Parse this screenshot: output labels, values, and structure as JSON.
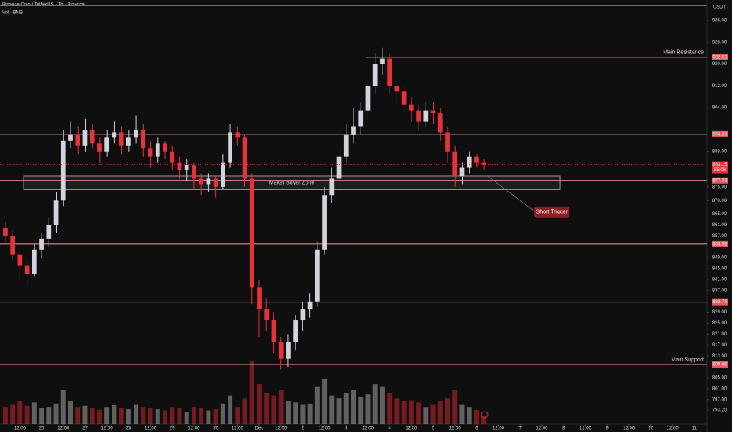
{
  "chart_data": {
    "type": "candlestick",
    "title": "Binance Coin / TetherUS · 1h · Binance",
    "subtitle": "Vol · BNB",
    "currency": "USDT",
    "colors": {
      "up": "#d1d4dc",
      "down": "#e5323b",
      "level": "#f19a9a",
      "level_label": "#e0575d"
    },
    "x": [
      -20,
      -16,
      -12,
      -8,
      -4,
      0,
      4,
      8,
      12,
      16,
      20,
      24,
      28,
      32,
      36,
      40,
      44,
      48,
      52,
      56,
      60,
      64,
      68,
      72,
      76,
      80,
      84,
      88,
      92,
      96,
      100,
      104,
      108,
      112,
      116,
      120,
      124,
      128,
      132,
      136,
      140,
      144,
      148,
      152,
      156,
      160,
      164,
      168,
      172,
      176,
      180,
      184,
      188,
      192,
      196,
      200,
      204,
      208,
      212,
      216,
      220,
      224,
      228,
      232,
      236,
      240,
      244
    ],
    "open": [
      860,
      857,
      850,
      846,
      843,
      852,
      856,
      861,
      870,
      892,
      894,
      890,
      896,
      891,
      888,
      893,
      895,
      890,
      893,
      896,
      889,
      886,
      891,
      888,
      884,
      881,
      883,
      878,
      876,
      878,
      875,
      884,
      895,
      893,
      878,
      838,
      830,
      826,
      818,
      812,
      818,
      826,
      830,
      833,
      852,
      872,
      878,
      886,
      894,
      897,
      903,
      912,
      920,
      922,
      912,
      910,
      905,
      903,
      899,
      903,
      902,
      895,
      888,
      879,
      882,
      886,
      884
    ],
    "high": [
      862,
      859,
      852,
      849,
      854,
      858,
      864,
      873,
      896,
      899,
      897,
      900,
      898,
      893,
      896,
      899,
      897,
      896,
      901,
      898,
      892,
      893,
      892,
      890,
      886,
      885,
      884,
      880,
      880,
      879,
      887,
      898,
      897,
      894,
      880,
      841,
      834,
      829,
      820,
      821,
      828,
      833,
      836,
      855,
      875,
      882,
      889,
      898,
      904,
      906,
      915,
      924,
      926,
      924,
      915,
      912,
      908,
      905,
      906,
      906,
      904,
      897,
      890,
      884,
      888,
      887,
      885
    ],
    "low": [
      855,
      848,
      841,
      839,
      842,
      849,
      853,
      858,
      868,
      889,
      887,
      888,
      889,
      884,
      886,
      891,
      887,
      888,
      891,
      886,
      882,
      884,
      885,
      881,
      878,
      877,
      874,
      872,
      873,
      871,
      874,
      882,
      890,
      875,
      832,
      820,
      822,
      814,
      808,
      809,
      815,
      822,
      827,
      831,
      850,
      869,
      875,
      884,
      891,
      894,
      900,
      909,
      916,
      909,
      906,
      902,
      899,
      896,
      897,
      898,
      892,
      884,
      875,
      876,
      880,
      882,
      881
    ],
    "close": [
      857,
      850,
      846,
      843,
      852,
      856,
      861,
      870,
      892,
      894,
      890,
      896,
      891,
      888,
      893,
      895,
      890,
      893,
      896,
      889,
      886,
      891,
      888,
      884,
      881,
      883,
      878,
      876,
      878,
      875,
      884,
      895,
      893,
      878,
      838,
      830,
      826,
      818,
      812,
      818,
      826,
      830,
      833,
      852,
      872,
      878,
      886,
      894,
      897,
      903,
      912,
      920,
      922,
      912,
      910,
      905,
      903,
      899,
      903,
      902,
      895,
      888,
      879,
      882,
      886,
      884,
      883.15
    ],
    "volume": [
      30,
      35,
      40,
      32,
      38,
      28,
      30,
      36,
      60,
      40,
      30,
      32,
      28,
      25,
      30,
      34,
      28,
      26,
      35,
      30,
      28,
      26,
      24,
      30,
      28,
      22,
      30,
      28,
      24,
      26,
      36,
      50,
      30,
      45,
      110,
      70,
      55,
      50,
      60,
      40,
      38,
      35,
      36,
      65,
      80,
      50,
      45,
      55,
      60,
      48,
      52,
      70,
      65,
      55,
      45,
      40,
      42,
      38,
      30,
      35,
      40,
      45,
      60,
      35,
      30,
      25,
      15
    ],
    "xlim": [
      -23,
      367
    ],
    "xticks": [
      {
        "value": -12,
        "label": "12:00"
      },
      {
        "value": 0,
        "label": "26"
      },
      {
        "value": 12,
        "label": "12:00"
      },
      {
        "value": 24,
        "label": "27"
      },
      {
        "value": 36,
        "label": "12:00"
      },
      {
        "value": 48,
        "label": "28"
      },
      {
        "value": 60,
        "label": "12:00"
      },
      {
        "value": 72,
        "label": "29"
      },
      {
        "value": 84,
        "label": "12:00"
      },
      {
        "value": 96,
        "label": "30"
      },
      {
        "value": 108,
        "label": "12:00"
      },
      {
        "value": 120,
        "label": "Dec"
      },
      {
        "value": 132,
        "label": "12:00"
      },
      {
        "value": 144,
        "label": "2"
      },
      {
        "value": 156,
        "label": "12:00"
      },
      {
        "value": 168,
        "label": "3"
      },
      {
        "value": 180,
        "label": "12:00"
      },
      {
        "value": 192,
        "label": "4"
      },
      {
        "value": 204,
        "label": "12:00"
      },
      {
        "value": 216,
        "label": "5"
      },
      {
        "value": 228,
        "label": "12:00"
      },
      {
        "value": 240,
        "label": "6"
      },
      {
        "value": 252,
        "label": "12:00"
      },
      {
        "value": 264,
        "label": "7"
      },
      {
        "value": 276,
        "label": "12:00"
      },
      {
        "value": 288,
        "label": "8"
      },
      {
        "value": 300,
        "label": "12:00"
      },
      {
        "value": 312,
        "label": "9"
      },
      {
        "value": 324,
        "label": "12:00"
      },
      {
        "value": 336,
        "label": "10"
      },
      {
        "value": 348,
        "label": "12:00"
      },
      {
        "value": 360,
        "label": "11"
      }
    ],
    "ylim": [
      788,
      943.5
    ],
    "yticks": [
      {
        "value": 936,
        "label": "936.00"
      },
      {
        "value": 928,
        "label": "928.00"
      },
      {
        "value": 920,
        "label": "920.00"
      },
      {
        "value": 912,
        "label": "912.00"
      },
      {
        "value": 904,
        "label": "904.00"
      },
      {
        "value": 888,
        "label": "888.00"
      },
      {
        "value": 875,
        "label": "875.00"
      },
      {
        "value": 870,
        "label": "870.00"
      },
      {
        "value": 865,
        "label": "865.00"
      },
      {
        "value": 861,
        "label": "861.00"
      },
      {
        "value": 857,
        "label": "857.00"
      },
      {
        "value": 849,
        "label": "849.00"
      },
      {
        "value": 845,
        "label": "845.00"
      },
      {
        "value": 841,
        "label": "841.00"
      },
      {
        "value": 837,
        "label": "837.00"
      },
      {
        "value": 829,
        "label": "829.00"
      },
      {
        "value": 825,
        "label": "825.00"
      },
      {
        "value": 821,
        "label": "821.00"
      },
      {
        "value": 817,
        "label": "817.00"
      },
      {
        "value": 813,
        "label": "813.00"
      },
      {
        "value": 805,
        "label": "805.00"
      },
      {
        "value": 801,
        "label": "801.00"
      },
      {
        "value": 797,
        "label": "797.00"
      },
      {
        "value": 793.2,
        "label": "793.20"
      }
    ],
    "levels": [
      {
        "value": 922.51,
        "name": "Main Resistance",
        "from": 179
      },
      {
        "value": 894.31
      },
      {
        "value": 877.33
      },
      {
        "value": 853.98
      },
      {
        "value": 832.73
      },
      {
        "value": 809.88,
        "name": "Main Support"
      }
    ],
    "last_price": {
      "value": 883.15,
      "countdown": "55:08"
    },
    "zone": {
      "label": "Maker Buyer Zone",
      "xlim": [
        -10,
        286
      ],
      "ylim": [
        874,
        879
      ]
    },
    "short_trigger": {
      "label": "Short Trigger",
      "from": [
        246,
        879
      ],
      "to": [
        272,
        866
      ]
    }
  }
}
